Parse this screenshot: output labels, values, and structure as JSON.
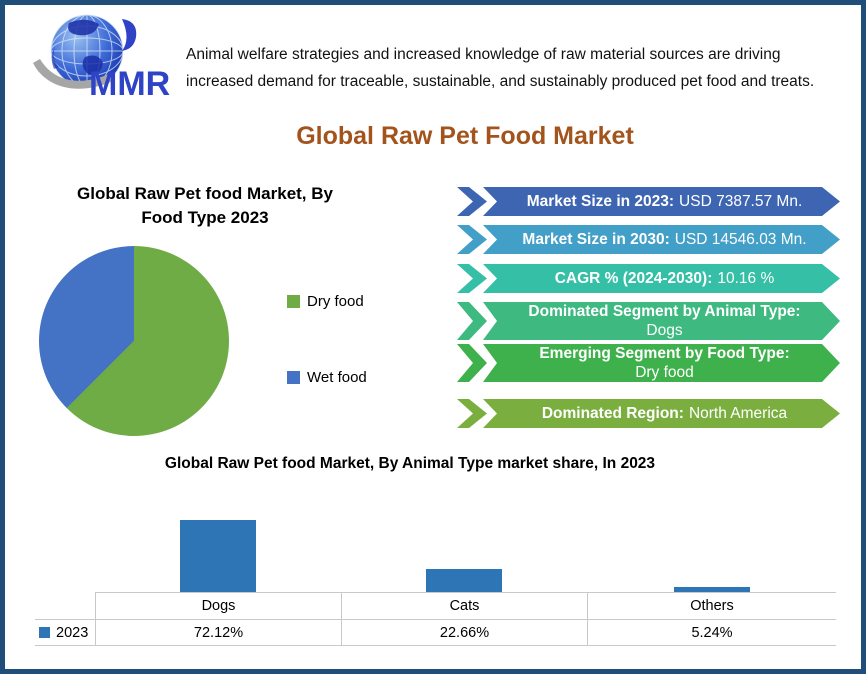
{
  "page": {
    "border_color": "#1F4E79",
    "background": "#FFFFFF"
  },
  "logo": {
    "text": "MMR",
    "text_color": "#2F43C6",
    "globe_color": "#3E6BD8",
    "swoosh_color": "#A6A6A6"
  },
  "header": {
    "intro": "Animal welfare strategies and increased knowledge of raw material sources are driving increased demand for traceable, sustainable, and sustainably produced pet food and treats."
  },
  "main_title": {
    "text": "Global Raw Pet Food Market",
    "color": "#A3541D"
  },
  "pie_section": {
    "title": "Global Raw Pet food Market, By Food Type 2023",
    "legend": [
      {
        "label": "Dry food",
        "color": "#6FAC46"
      },
      {
        "label": "Wet food",
        "color": "#4472C4"
      }
    ]
  },
  "banners": [
    {
      "label": "Market Size in 2023:",
      "value": "USD 7387.57 Mn.",
      "color": "#3D65B2"
    },
    {
      "label": "Market Size in 2030:",
      "value": "USD 14546.03 Mn.",
      "color": "#429FC8"
    },
    {
      "label": "CAGR % (2024-2030):",
      "value": "10.16 %",
      "color": "#35BFA6"
    },
    {
      "label": "Dominated Segment by Animal Type:",
      "value": "Dogs",
      "color": "#3EB980"
    },
    {
      "label": "Emerging Segment by Food Type:",
      "value": "Dry food",
      "color": "#3FB14C"
    },
    {
      "label": "Dominated Region:",
      "value": "North America",
      "color": "#7AAF3F"
    }
  ],
  "bar_section": {
    "title": "Global Raw Pet food Market, By Animal Type market share, In 2023",
    "legend_year": "2023",
    "columns": [
      "Dogs",
      "Cats",
      "Others"
    ],
    "values": [
      "72.12%",
      "22.66%",
      "5.24%"
    ]
  },
  "chart_data": [
    {
      "type": "pie",
      "title": "Global Raw Pet food Market, By Food Type 2023",
      "labels": [
        "Dry food",
        "Wet food"
      ],
      "values": [
        62.5,
        37.5
      ],
      "colors": [
        "#6FAC46",
        "#4472C4"
      ],
      "legend_position": "right",
      "start_angle_deg": 0,
      "direction": "clockwise"
    },
    {
      "type": "bar",
      "title": "Global Raw Pet food Market, By Animal Type market share, In 2023",
      "categories": [
        "Dogs",
        "Cats",
        "Others"
      ],
      "series": [
        {
          "name": "2023",
          "values": [
            72.12,
            22.66,
            5.24
          ]
        }
      ],
      "value_labels": [
        "72.12%",
        "22.66%",
        "5.24%"
      ],
      "bar_color": "#2E75B6",
      "ylabel": "",
      "xlabel": "",
      "ylim": [
        0,
        80
      ],
      "grid": false,
      "legend_position": "bottom-left",
      "data_table": true
    }
  ]
}
